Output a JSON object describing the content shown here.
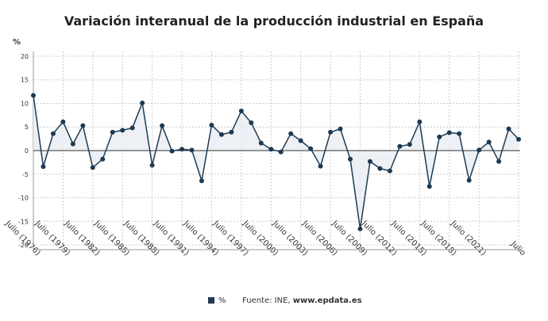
{
  "chart_data": {
    "type": "line",
    "title": "Variación interanual de la producción industrial en España",
    "y_label": "%",
    "categories": [
      "Julio (1976)",
      null,
      null,
      "Julio (1979)",
      null,
      null,
      "Julio (1982)",
      null,
      null,
      "Julio (1985)",
      null,
      null,
      "Julio (1988)",
      null,
      null,
      "Julio (1991)",
      null,
      null,
      "Julio (1994)",
      null,
      null,
      "Julio (1997)",
      null,
      null,
      "Julio (2000)",
      null,
      null,
      "Julio (2003)",
      null,
      null,
      "Julio (2006)",
      null,
      null,
      "Julio (2009)",
      null,
      null,
      "Julio (2012)",
      null,
      null,
      "Julio (2015)",
      null,
      null,
      "Julio (2018)",
      null,
      null,
      "Julio (2021)",
      null,
      null,
      null,
      "Julio"
    ],
    "series": [
      {
        "name": "%",
        "color": "#1d3a52",
        "values": [
          11.7,
          -3.4,
          3.6,
          6.1,
          1.4,
          5.3,
          -3.6,
          -1.8,
          3.9,
          4.3,
          4.8,
          10.1,
          -3.1,
          5.3,
          -0.1,
          0.3,
          0.1,
          -6.4,
          5.4,
          3.4,
          3.9,
          8.4,
          5.9,
          1.6,
          0.3,
          -0.3,
          3.6,
          2.1,
          0.4,
          -3.3,
          3.9,
          4.6,
          -1.8,
          -16.6,
          -2.3,
          -3.8,
          -4.3,
          0.9,
          1.3,
          6.1,
          -7.6,
          2.9,
          3.8,
          3.6,
          -6.3,
          0.1,
          1.8,
          -2.3,
          4.6,
          2.4
        ]
      }
    ],
    "ylim": [
      -21,
      21
    ],
    "yticks": [
      -20,
      -15,
      -10,
      -5,
      0,
      5,
      10,
      15,
      20
    ],
    "grid": true,
    "source_prefix": "Fuente: INE,",
    "source_link": "www.epdata.es"
  }
}
